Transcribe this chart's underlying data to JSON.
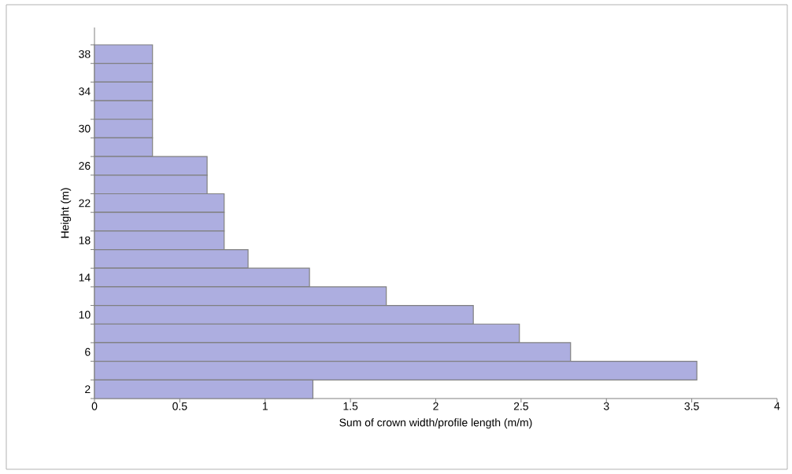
{
  "chart_data": {
    "type": "bar",
    "orientation": "horizontal",
    "xlabel": "Sum of crown width/profile length (m/m)",
    "ylabel": "Height (m)",
    "categories": [
      "38",
      null,
      "34",
      null,
      "30",
      null,
      "26",
      null,
      "22",
      null,
      "18",
      null,
      "14",
      null,
      "10",
      null,
      "6",
      null,
      "2"
    ],
    "values": [
      0.34,
      0.34,
      0.34,
      0.34,
      0.34,
      0.34,
      0.66,
      0.66,
      0.76,
      0.76,
      0.76,
      0.9,
      1.26,
      1.71,
      2.22,
      2.49,
      2.79,
      3.53,
      1.28
    ],
    "color": "#adaee0",
    "xlim": [
      0,
      4
    ],
    "xticks": [
      0,
      0.5,
      1,
      1.5,
      2,
      2.5,
      3,
      3.5,
      4
    ],
    "grid": false
  }
}
